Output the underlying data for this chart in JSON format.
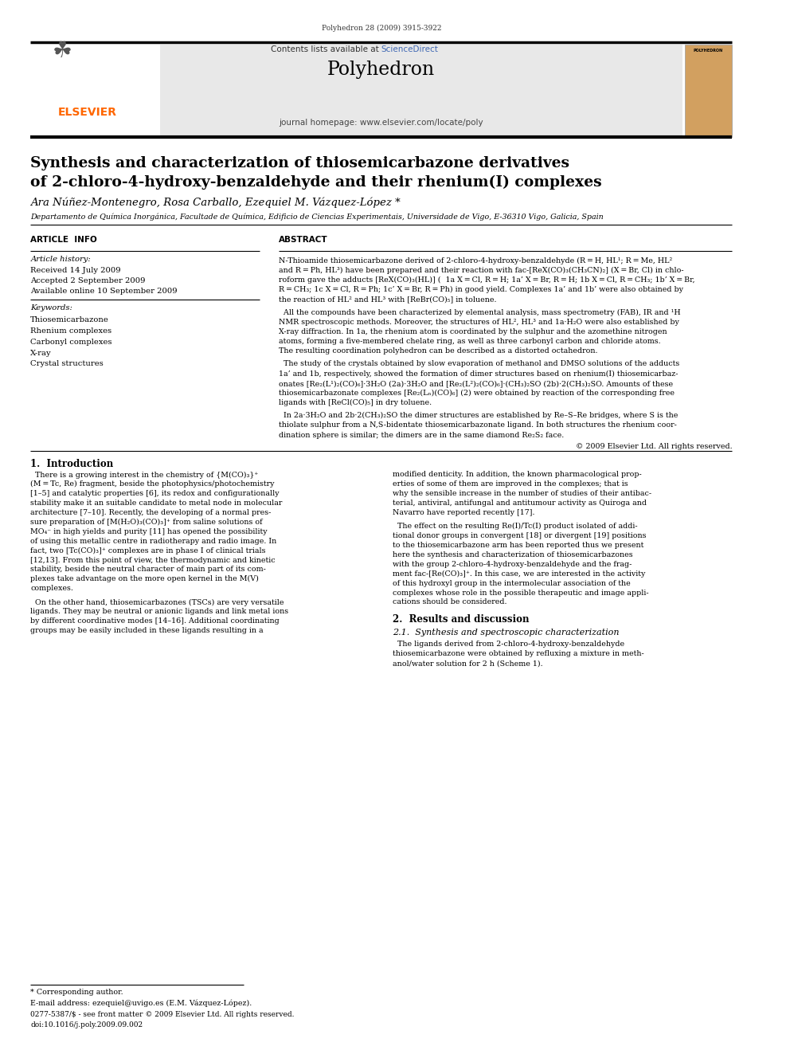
{
  "page_width": 9.92,
  "page_height": 13.23,
  "bg_color": "#ffffff",
  "journal_ref": "Polyhedron 28 (2009) 3915-3922",
  "contents_line": "Contents lists available at ScienceDirect",
  "sciencedirect_color": "#4169B4",
  "journal_name": "Polyhedron",
  "journal_homepage": "journal homepage: www.elsevier.com/locate/poly",
  "elsevier_color": "#FF6600",
  "title_line1": "Synthesis and characterization of thiosemicarbazone derivatives",
  "title_line2": "of 2-chloro-4-hydroxy-benzaldehyde and their rhenium(I) complexes",
  "authors": "Ara Núñez-Montenegro, Rosa Carballo, Ezequiel M. Vázquez-López",
  "authors_star": " *",
  "affiliation": "Departamento de Química Inorgánica, Facultade de Química, Edificio de Ciencias Experimentais, Universidade de Vigo, E-36310 Vigo, Galicia, Spain",
  "article_info_header": "ARTICLE  INFO",
  "abstract_header": "ABSTRACT",
  "article_history_label": "Article history:",
  "received": "Received 14 July 2009",
  "accepted": "Accepted 2 September 2009",
  "available": "Available online 10 September 2009",
  "keywords_label": "Keywords:",
  "keywords": [
    "Thiosemicarbazone",
    "Rhenium complexes",
    "Carbonyl complexes",
    "X-ray",
    "Crystal structures"
  ],
  "copyright": "© 2009 Elsevier Ltd. All rights reserved.",
  "intro_header": "1.  Introduction",
  "results_header": "2.  Results and discussion",
  "results_sub": "2.1.  Synthesis and spectroscopic characterization",
  "footnote_star": "* Corresponding author.",
  "footnote_email": "E-mail address: ezequiel@uvigo.es (E.M. Vázquez-López).",
  "footnote_issn": "0277-5387/$ - see front matter © 2009 Elsevier Ltd. All rights reserved.",
  "footnote_doi": "doi:10.1016/j.poly.2009.09.002",
  "header_bg": "#e8e8e8",
  "elsevier_color2": "#FF6600",
  "polyhedron_cover_color": "#D2A060"
}
